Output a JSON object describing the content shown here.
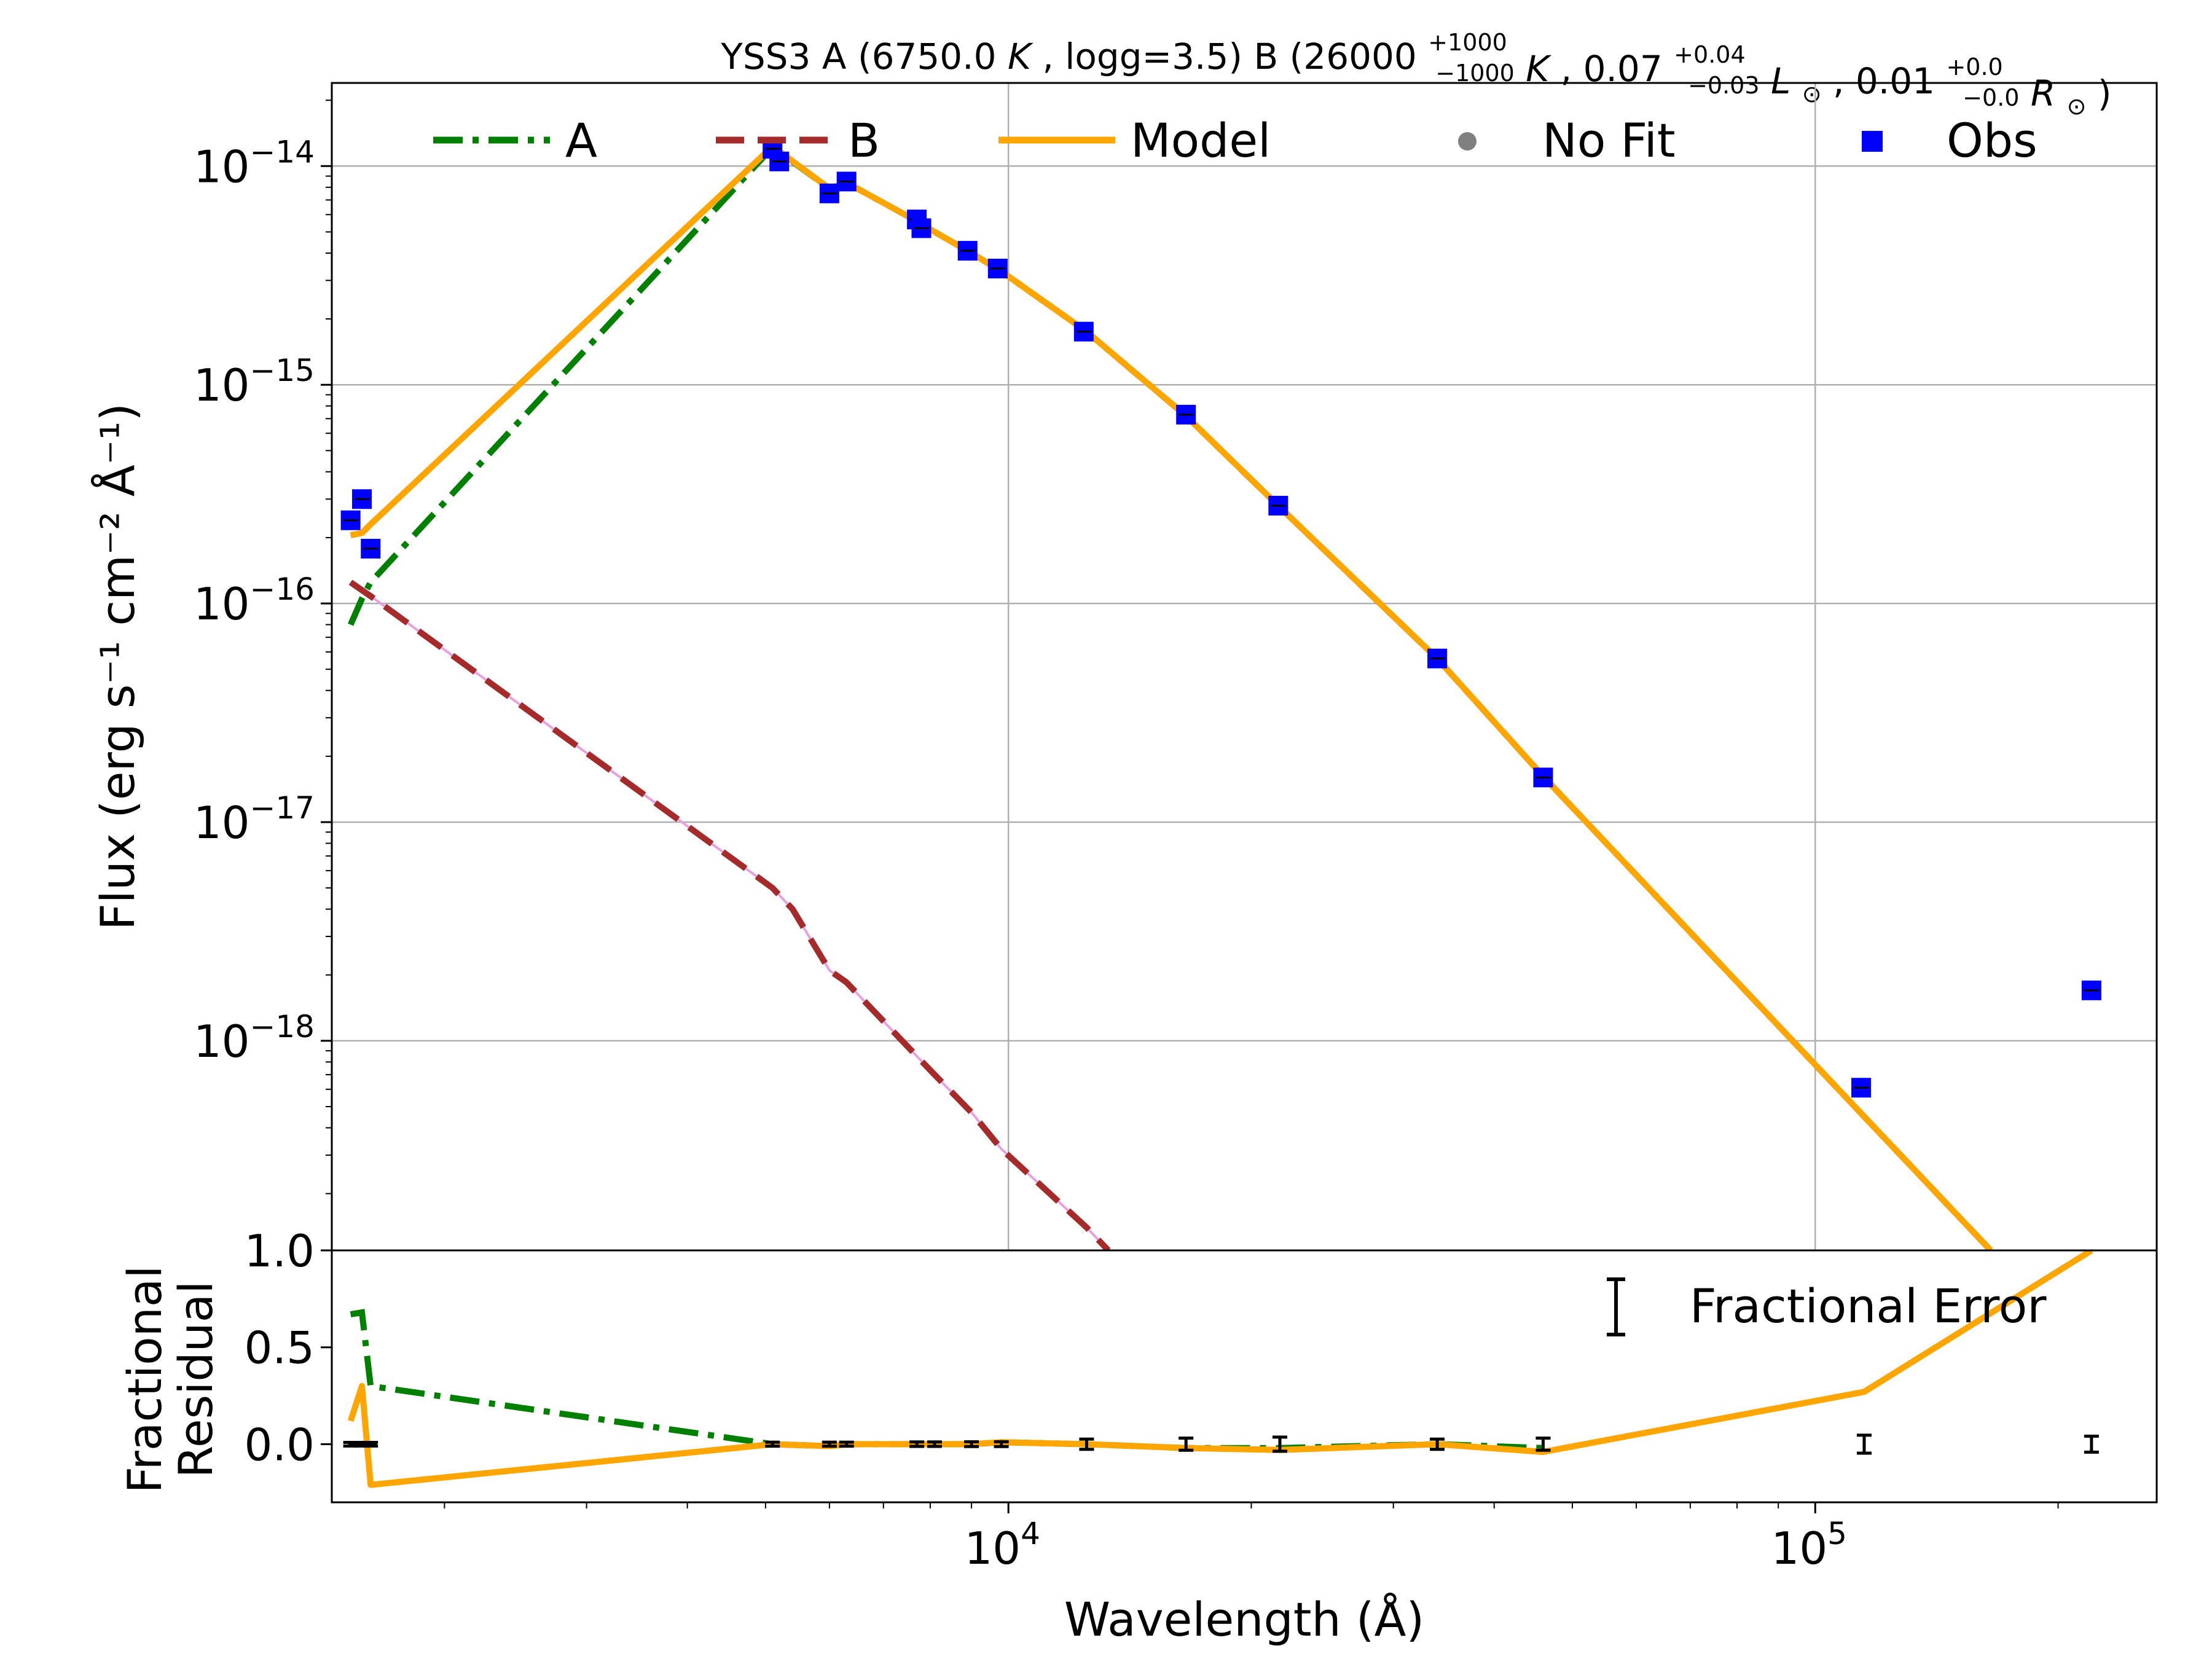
{
  "chart_data": {
    "type": "scatter",
    "title": {
      "name": "YSS3",
      "a_open": "A (6750.0",
      "a_unit": "K",
      "a_close": ", logg=3.5)",
      "b_open": "B (26000",
      "b_teff_plus": "+1000",
      "b_teff_minus": "−1000",
      "b_teff_unit": "K",
      "b_lum": ", 0.07",
      "b_lum_plus": "+0.04",
      "b_lum_minus": "−0.03",
      "b_lum_unit": "L",
      "b_rad": ", 0.01",
      "b_rad_plus": "+0.0",
      "b_rad_minus": "−0.0",
      "b_rad_unit": "R",
      "sun_symbol": "⊙",
      "close": ")"
    },
    "xlabel": "Wavelength (Å)",
    "ylabel_top": "Flux (erg s⁻¹ cm⁻² Å⁻¹)",
    "ylabel_bottom_line1": "Fractional",
    "ylabel_bottom_line2": "Residual",
    "x_scale": "log",
    "xlim": [
      1450,
      265000
    ],
    "top_panel": {
      "y_scale": "log",
      "ylim": [
        1.1e-19,
        2.4e-14
      ],
      "yticks": [
        {
          "value": 1e-14,
          "base": "10",
          "exp": "−14"
        },
        {
          "value": 1e-15,
          "base": "10",
          "exp": "−15"
        },
        {
          "value": 1e-16,
          "base": "10",
          "exp": "−16"
        },
        {
          "value": 1e-17,
          "base": "10",
          "exp": "−17"
        },
        {
          "value": 1e-18,
          "base": "10",
          "exp": "−18"
        }
      ]
    },
    "bottom_panel": {
      "y_scale": "linear",
      "ylim": [
        -0.3,
        1.0
      ],
      "yticks": [
        {
          "value": 1.0,
          "label": "1.0"
        },
        {
          "value": 0.5,
          "label": "0.5"
        },
        {
          "value": 0.0,
          "label": "0.0"
        }
      ]
    },
    "xticks": [
      {
        "value": 10000,
        "base": "10",
        "exp": "4"
      },
      {
        "value": 100000,
        "base": "10",
        "exp": "5"
      }
    ],
    "legend_top": {
      "placement": "top",
      "entries": [
        {
          "key": "A",
          "label": "A",
          "style": "dashdot",
          "color": "#008000"
        },
        {
          "key": "B",
          "label": "B",
          "style": "dashed",
          "color": "#a52a2a"
        },
        {
          "key": "Model",
          "label": "Model",
          "style": "solid",
          "color": "#ffa500"
        },
        {
          "key": "NoFit",
          "label": "No Fit",
          "style": "circle",
          "color": "#808080"
        },
        {
          "key": "Obs",
          "label": "Obs",
          "style": "square",
          "color": "#0000ff"
        }
      ]
    },
    "legend_bottom": {
      "placement": "top-right",
      "label": "Fractional Error"
    },
    "colors": {
      "A": "#008000",
      "B": "#a52a2a",
      "B_underlay": "#e8a0e0",
      "Model": "#ffa500",
      "Obs": "#0000ff",
      "NoFit": "#808080",
      "errorbar": "#000000"
    },
    "series": [
      {
        "key": "A",
        "x": [
          1530,
          1580,
          1620,
          5100,
          6000,
          6300,
          7700,
          8100,
          9000,
          9800,
          12500,
          16600,
          21700,
          34000,
          46000,
          115000,
          165000
        ],
        "y": [
          8e-17,
          1.05e-16,
          1.25e-16,
          1.22e-14,
          7.9e-15,
          8.4e-15,
          5.6e-15,
          5e-15,
          4e-15,
          3.3e-15,
          1.75e-15,
          7.2e-16,
          2.75e-16,
          5.6e-17,
          1.62e-17,
          4.5e-19,
          1.1e-19
        ]
      },
      {
        "key": "B",
        "x": [
          1530,
          1580,
          1620,
          5100,
          5400,
          6000,
          6300,
          7700,
          8100,
          9000,
          9800,
          12500,
          13300
        ],
        "y": [
          1.25e-16,
          1.15e-16,
          1.08e-16,
          5e-18,
          4e-18,
          2.1e-18,
          1.85e-18,
          8.5e-19,
          7e-19,
          4.7e-19,
          3.2e-19,
          1.4e-19,
          1.1e-19
        ]
      },
      {
        "key": "Model",
        "x": [
          1530,
          1580,
          1620,
          5100,
          6000,
          6300,
          7700,
          8100,
          9000,
          9800,
          12500,
          16600,
          21700,
          34000,
          46000,
          115000,
          165000
        ],
        "y": [
          2.05e-16,
          2.1e-16,
          2.3e-16,
          1.23e-14,
          7.9e-15,
          8.4e-15,
          5.6e-15,
          5e-15,
          4e-15,
          3.3e-15,
          1.75e-15,
          7.2e-16,
          2.75e-16,
          5.6e-17,
          1.62e-17,
          4.5e-19,
          1.1e-19
        ]
      }
    ],
    "observations": [
      {
        "x": 1530,
        "y": 2.4e-16
      },
      {
        "x": 1580,
        "y": 3e-16
      },
      {
        "x": 1620,
        "y": 1.78e-16
      },
      {
        "x": 5100,
        "y": 1.2e-14
      },
      {
        "x": 5200,
        "y": 1.05e-14
      },
      {
        "x": 6000,
        "y": 7.5e-15
      },
      {
        "x": 6300,
        "y": 8.5e-15
      },
      {
        "x": 7700,
        "y": 5.7e-15
      },
      {
        "x": 7800,
        "y": 5.2e-15
      },
      {
        "x": 8900,
        "y": 4.1e-15
      },
      {
        "x": 9700,
        "y": 3.4e-15
      },
      {
        "x": 12400,
        "y": 1.75e-15
      },
      {
        "x": 16600,
        "y": 7.3e-16
      },
      {
        "x": 21600,
        "y": 2.8e-16
      },
      {
        "x": 34000,
        "y": 5.6e-17
      },
      {
        "x": 46000,
        "y": 1.6e-17
      },
      {
        "x": 114000,
        "y": 6.1e-19
      },
      {
        "x": 220000,
        "y": 1.7e-18
      }
    ],
    "residuals": {
      "A": {
        "x": [
          1530,
          1580,
          1620,
          5100,
          6000,
          6300,
          7700,
          8100,
          9000,
          9800,
          12500,
          16600,
          21700,
          34000,
          46000
        ],
        "y": [
          0.67,
          0.68,
          0.3,
          0.0,
          -0.01,
          0.0,
          0.0,
          0.0,
          0.0,
          0.01,
          0.0,
          -0.02,
          -0.02,
          0.0,
          -0.02
        ]
      },
      "Model": {
        "x": [
          1530,
          1580,
          1620,
          5100,
          6000,
          6300,
          7700,
          8100,
          9000,
          9800,
          12500,
          16600,
          21700,
          34000,
          46000,
          115000,
          220000
        ],
        "y": [
          0.12,
          0.3,
          -0.21,
          0.0,
          -0.01,
          0.0,
          0.0,
          0.0,
          0.0,
          0.01,
          0.0,
          -0.02,
          -0.03,
          0.0,
          -0.04,
          0.27,
          1.0
        ]
      },
      "errorbars": [
        {
          "x": 1530,
          "err": 0.003
        },
        {
          "x": 1580,
          "err": 0.003
        },
        {
          "x": 1620,
          "err": 0.003
        },
        {
          "x": 5100,
          "err": 0.004
        },
        {
          "x": 6000,
          "err": 0.004
        },
        {
          "x": 6300,
          "err": 0.004
        },
        {
          "x": 7700,
          "err": 0.005
        },
        {
          "x": 8100,
          "err": 0.005
        },
        {
          "x": 9000,
          "err": 0.006
        },
        {
          "x": 9800,
          "err": 0.006
        },
        {
          "x": 12500,
          "err": 0.02
        },
        {
          "x": 16600,
          "err": 0.025
        },
        {
          "x": 21700,
          "err": 0.03
        },
        {
          "x": 34000,
          "err": 0.02
        },
        {
          "x": 46000,
          "err": 0.025
        },
        {
          "x": 115000,
          "err": 0.04
        },
        {
          "x": 220000,
          "err": 0.035
        }
      ]
    }
  }
}
